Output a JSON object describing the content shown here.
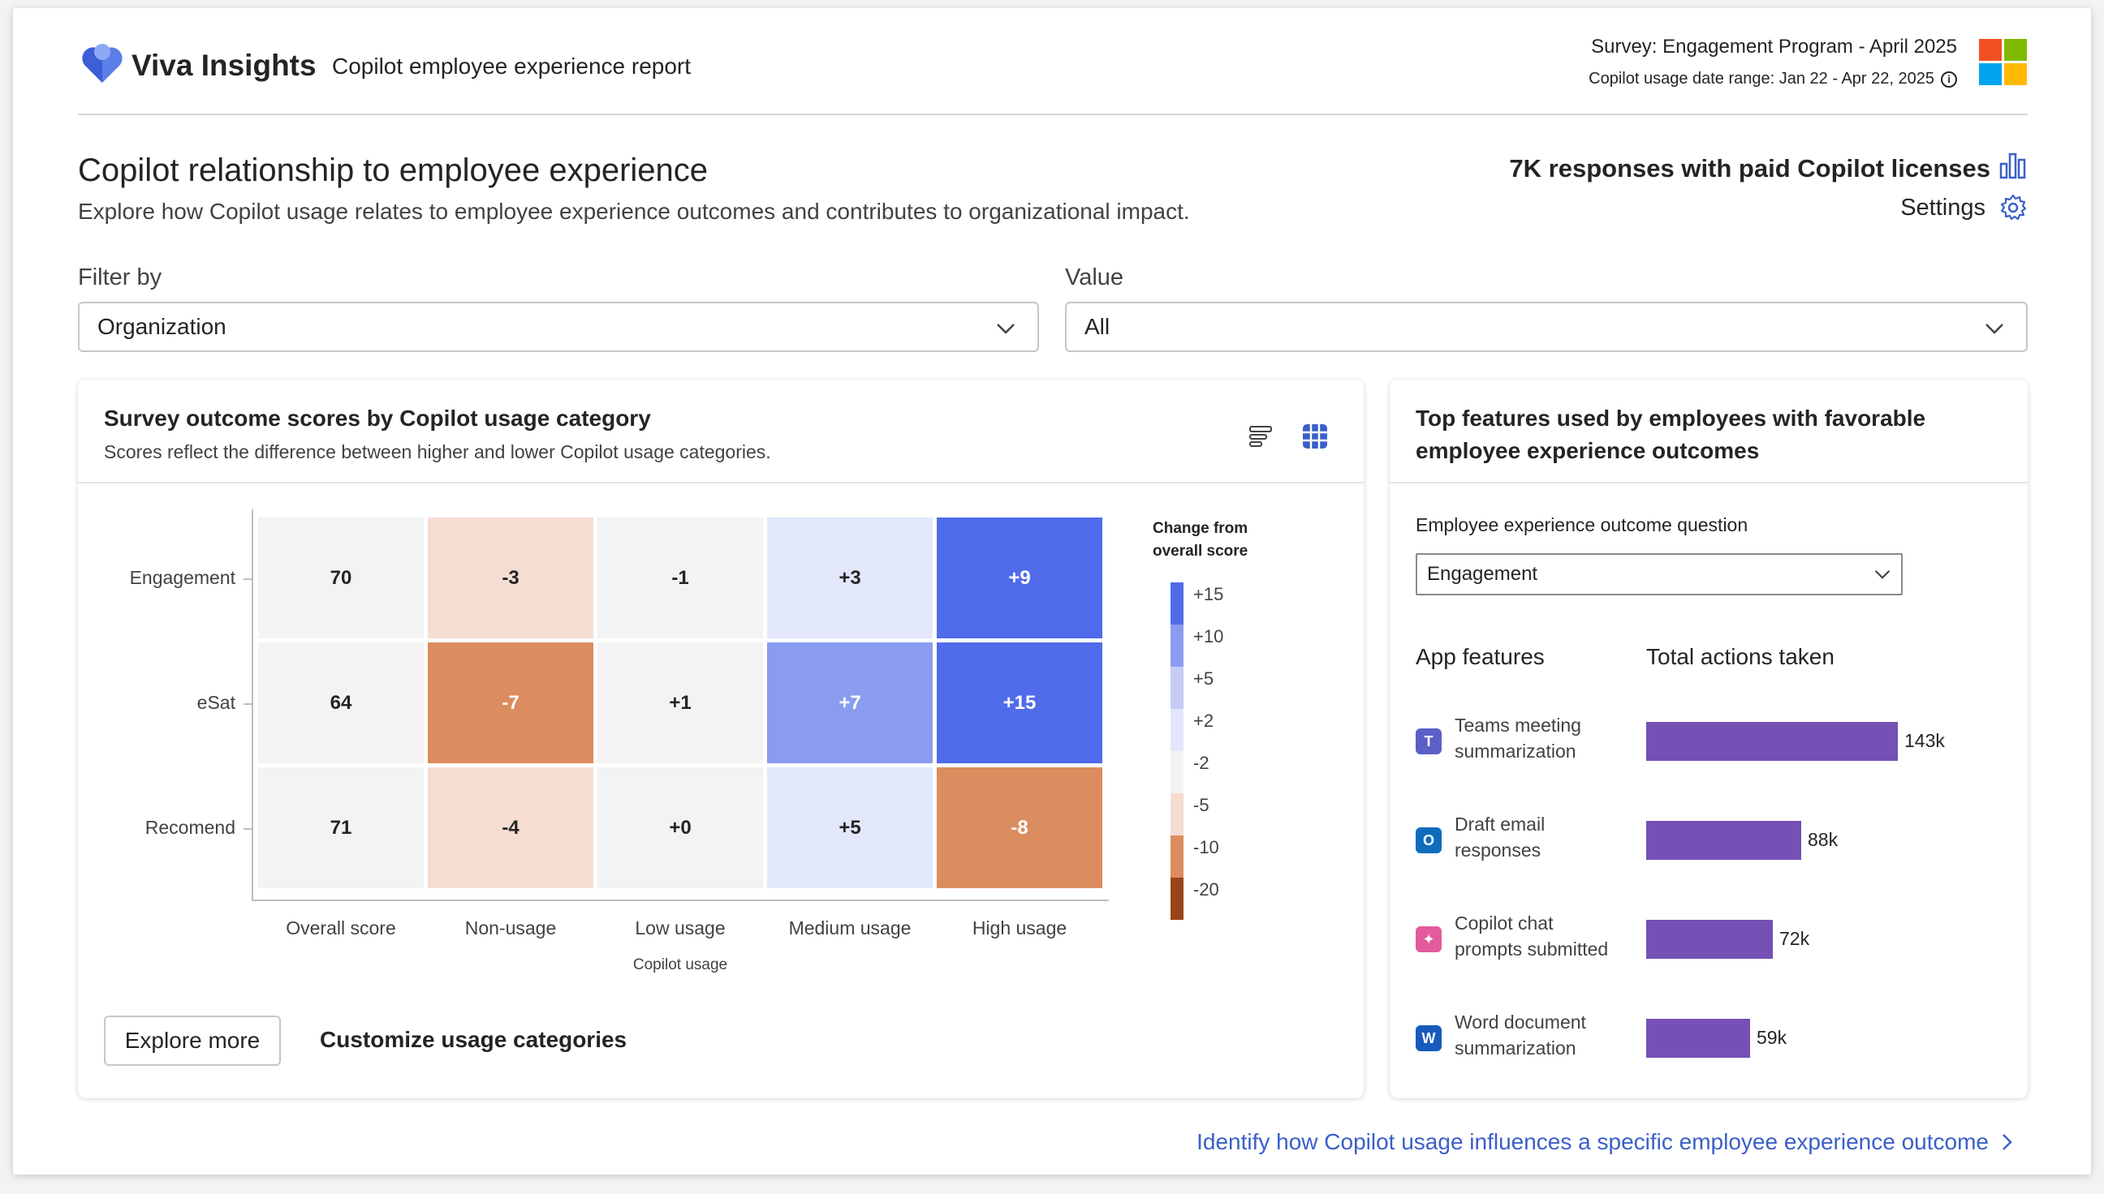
{
  "header": {
    "brand": "Viva Insights",
    "report_title": "Copilot employee experience report",
    "survey": "Survey: Engagement Program - April 2025",
    "date_range": "Copilot usage date range: Jan 22 - Apr 22, 2025"
  },
  "page": {
    "title": "Copilot relationship to employee experience",
    "subtitle": "Explore how Copilot usage relates to employee experience outcomes and contributes to organizational impact.",
    "responses": "7K responses with paid Copilot licenses",
    "settings": "Settings"
  },
  "filters": {
    "filter_label": "Filter by",
    "filter_value": "Organization",
    "value_label": "Value",
    "value_value": "All"
  },
  "heatmap_card": {
    "title": "Survey outcome scores by Copilot usage category",
    "subtitle": "Scores reflect the difference between higher and lower Copilot usage categories.",
    "x_axis_title": "Copilot usage",
    "legend_title_line1": "Change from",
    "legend_title_line2": "overall score",
    "explore_button": "Explore more",
    "customize_link": "Customize usage categories"
  },
  "chart_data": {
    "type": "heatmap",
    "title": "Survey outcome scores by Copilot usage category",
    "xlabel": "Copilot usage",
    "ylabel": "",
    "columns": [
      "Overall score",
      "Non-usage",
      "Low usage",
      "Medium usage",
      "High usage"
    ],
    "rows": [
      "Engagement",
      "eSat",
      "Recomend"
    ],
    "values": [
      [
        "70",
        "-3",
        "-1",
        "+3",
        "+9"
      ],
      [
        "64",
        "-7",
        "+1",
        "+7",
        "+15"
      ],
      [
        "71",
        "-4",
        "+0",
        "+5",
        "-8"
      ]
    ],
    "legend": [
      "+15",
      "+10",
      "+5",
      "+2",
      "-2",
      "-5",
      "-10",
      "-20"
    ],
    "legend_colors": [
      "#4f6bea",
      "#8a9cf0",
      "#c5cdf7",
      "#e3e7fb",
      "#f3f3f3",
      "#f6ddd2",
      "#dc8d5f",
      "#9b4418"
    ]
  },
  "features_card": {
    "title_line1": "Top features used by employees with favorable",
    "title_line2": "employee experience outcomes",
    "question_label": "Employee experience outcome question",
    "question_value": "Engagement",
    "col_features": "App features",
    "col_actions": "Total actions taken",
    "features": [
      {
        "line1": "Teams meeting",
        "line2": "summarization",
        "value": "143k",
        "amount": 143,
        "icon": "teams-icon"
      },
      {
        "line1": "Draft email",
        "line2": "responses",
        "value": "88k",
        "amount": 88,
        "icon": "outlook-icon"
      },
      {
        "line1": "Copilot chat",
        "line2": "prompts submitted",
        "value": "72k",
        "amount": 72,
        "icon": "copilot-icon"
      },
      {
        "line1": "Word document",
        "line2": "summarization",
        "value": "59k",
        "amount": 59,
        "icon": "word-icon"
      }
    ]
  },
  "footer": {
    "link": "Identify how Copilot usage influences a specific employee experience outcome"
  },
  "colors": {
    "accent": "#3b5fc9",
    "bar": "#7551b5"
  }
}
